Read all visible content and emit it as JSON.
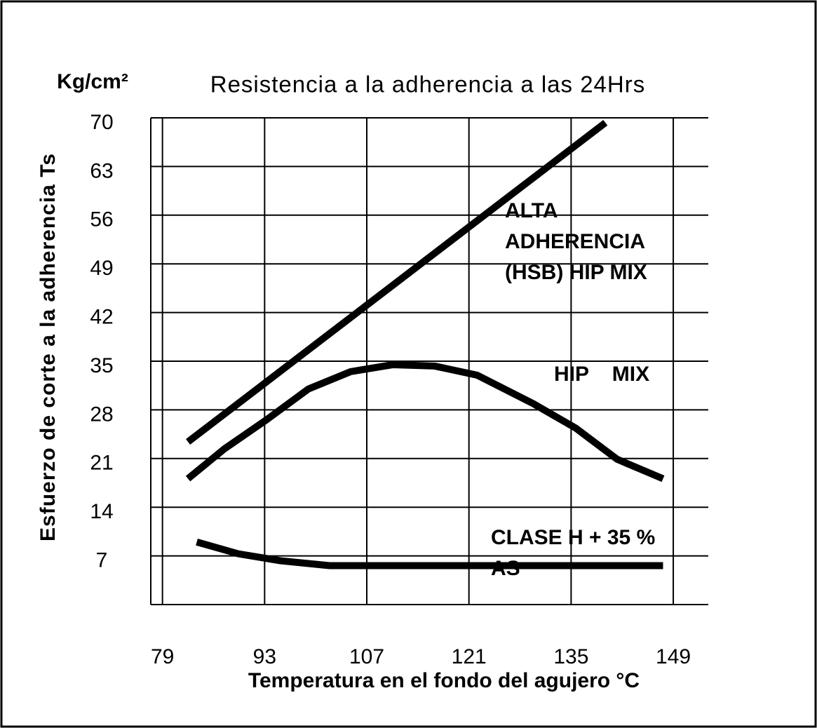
{
  "chart_data": {
    "type": "line",
    "title": "Resistencia a la adherencia a las 24Hrs",
    "y_unit": "Kg/cm²",
    "y_label": "Esfuerzo de corte a la adherencia Ts",
    "x_label": "Temperatura en el fondo del agujero °C",
    "xlim": [
      77.4,
      153.8
    ],
    "xticks": [
      79,
      93,
      107,
      121,
      135,
      149
    ],
    "ylim": [
      0,
      70
    ],
    "yticks": [
      0,
      7,
      14,
      21,
      28,
      35,
      42,
      49,
      56,
      63,
      70
    ],
    "ytick_labels": [
      null,
      "7",
      "14",
      "21",
      "28",
      "35",
      "42",
      "49",
      "56",
      "63",
      "70"
    ],
    "grid": true,
    "series": [
      {
        "name": "ALTA ADHERENCIA (HSB) HIP MIX",
        "color": "#000000",
        "x": [
          82.5,
          139.7
        ],
        "values": [
          23.4,
          69.3
        ]
      },
      {
        "name": "HIP MIX",
        "color": "#000000",
        "x": [
          82.5,
          87.5,
          93.3,
          99.0,
          104.8,
          110.6,
          116.3,
          122.1,
          129.8,
          135.6,
          141.3,
          147.6
        ],
        "values": [
          18.1,
          22.4,
          26.6,
          31.0,
          33.5,
          34.5,
          34.3,
          33.0,
          28.9,
          25.4,
          20.9,
          18.1
        ]
      },
      {
        "name": "CLASE H + 35 % AS",
        "color": "#000000",
        "x": [
          83.7,
          89.4,
          95.2,
          101.9,
          147.6
        ],
        "values": [
          9.0,
          7.3,
          6.3,
          5.6,
          5.6
        ]
      }
    ],
    "annotations": [
      [
        "ALTA",
        "ADHERENCIA",
        "(HSB) HIP MIX"
      ],
      [
        "HIP    MIX"
      ],
      [
        "CLASE H + 35 %",
        "AS"
      ]
    ]
  }
}
